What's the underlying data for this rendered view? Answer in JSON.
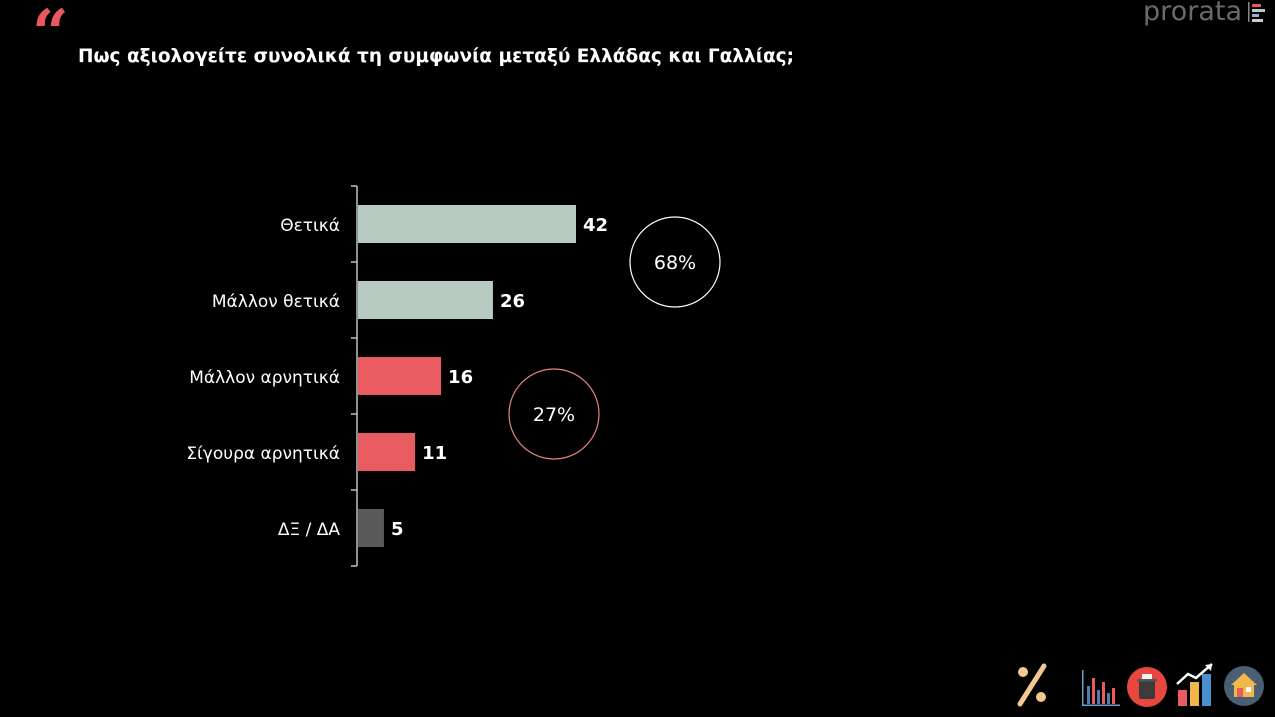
{
  "header": {
    "quote_mark": "“",
    "question": "Πως αξιολογείτε συνολικά τη συμφωνία μεταξύ Ελλάδας και Γαλλίας;",
    "brand": "prorata"
  },
  "colors": {
    "positive": "#b8cbc2",
    "negative": "#e85c61",
    "neutral": "#595959",
    "axis": "#bfbfbf",
    "circle_positive": "#ffffff",
    "circle_negative": "#e8857f",
    "accent": "#e8595f"
  },
  "chart_data": {
    "type": "bar",
    "orientation": "horizontal",
    "categories": [
      "Θετικά",
      "Μάλλον θετικά",
      "Μάλλον αρνητικά",
      "Σίγουρα αρνητικά",
      "ΔΞ / ΔΑ"
    ],
    "values": [
      42,
      26,
      16,
      11,
      5
    ],
    "value_labels": [
      "42",
      "26",
      "16",
      "11",
      "5"
    ],
    "groups": [
      "positive",
      "positive",
      "negative",
      "negative",
      "neutral"
    ],
    "totals": [
      {
        "label": "68%",
        "group": "positive",
        "value": 68
      },
      {
        "label": "27%",
        "group": "negative",
        "value": 27
      }
    ],
    "xlim": [
      0,
      42
    ],
    "grid": false,
    "legend": "none"
  },
  "footer_icons": [
    "percent-icon",
    "bar-chart-icon",
    "ballot-box-icon",
    "growth-chart-icon",
    "house-icon"
  ]
}
